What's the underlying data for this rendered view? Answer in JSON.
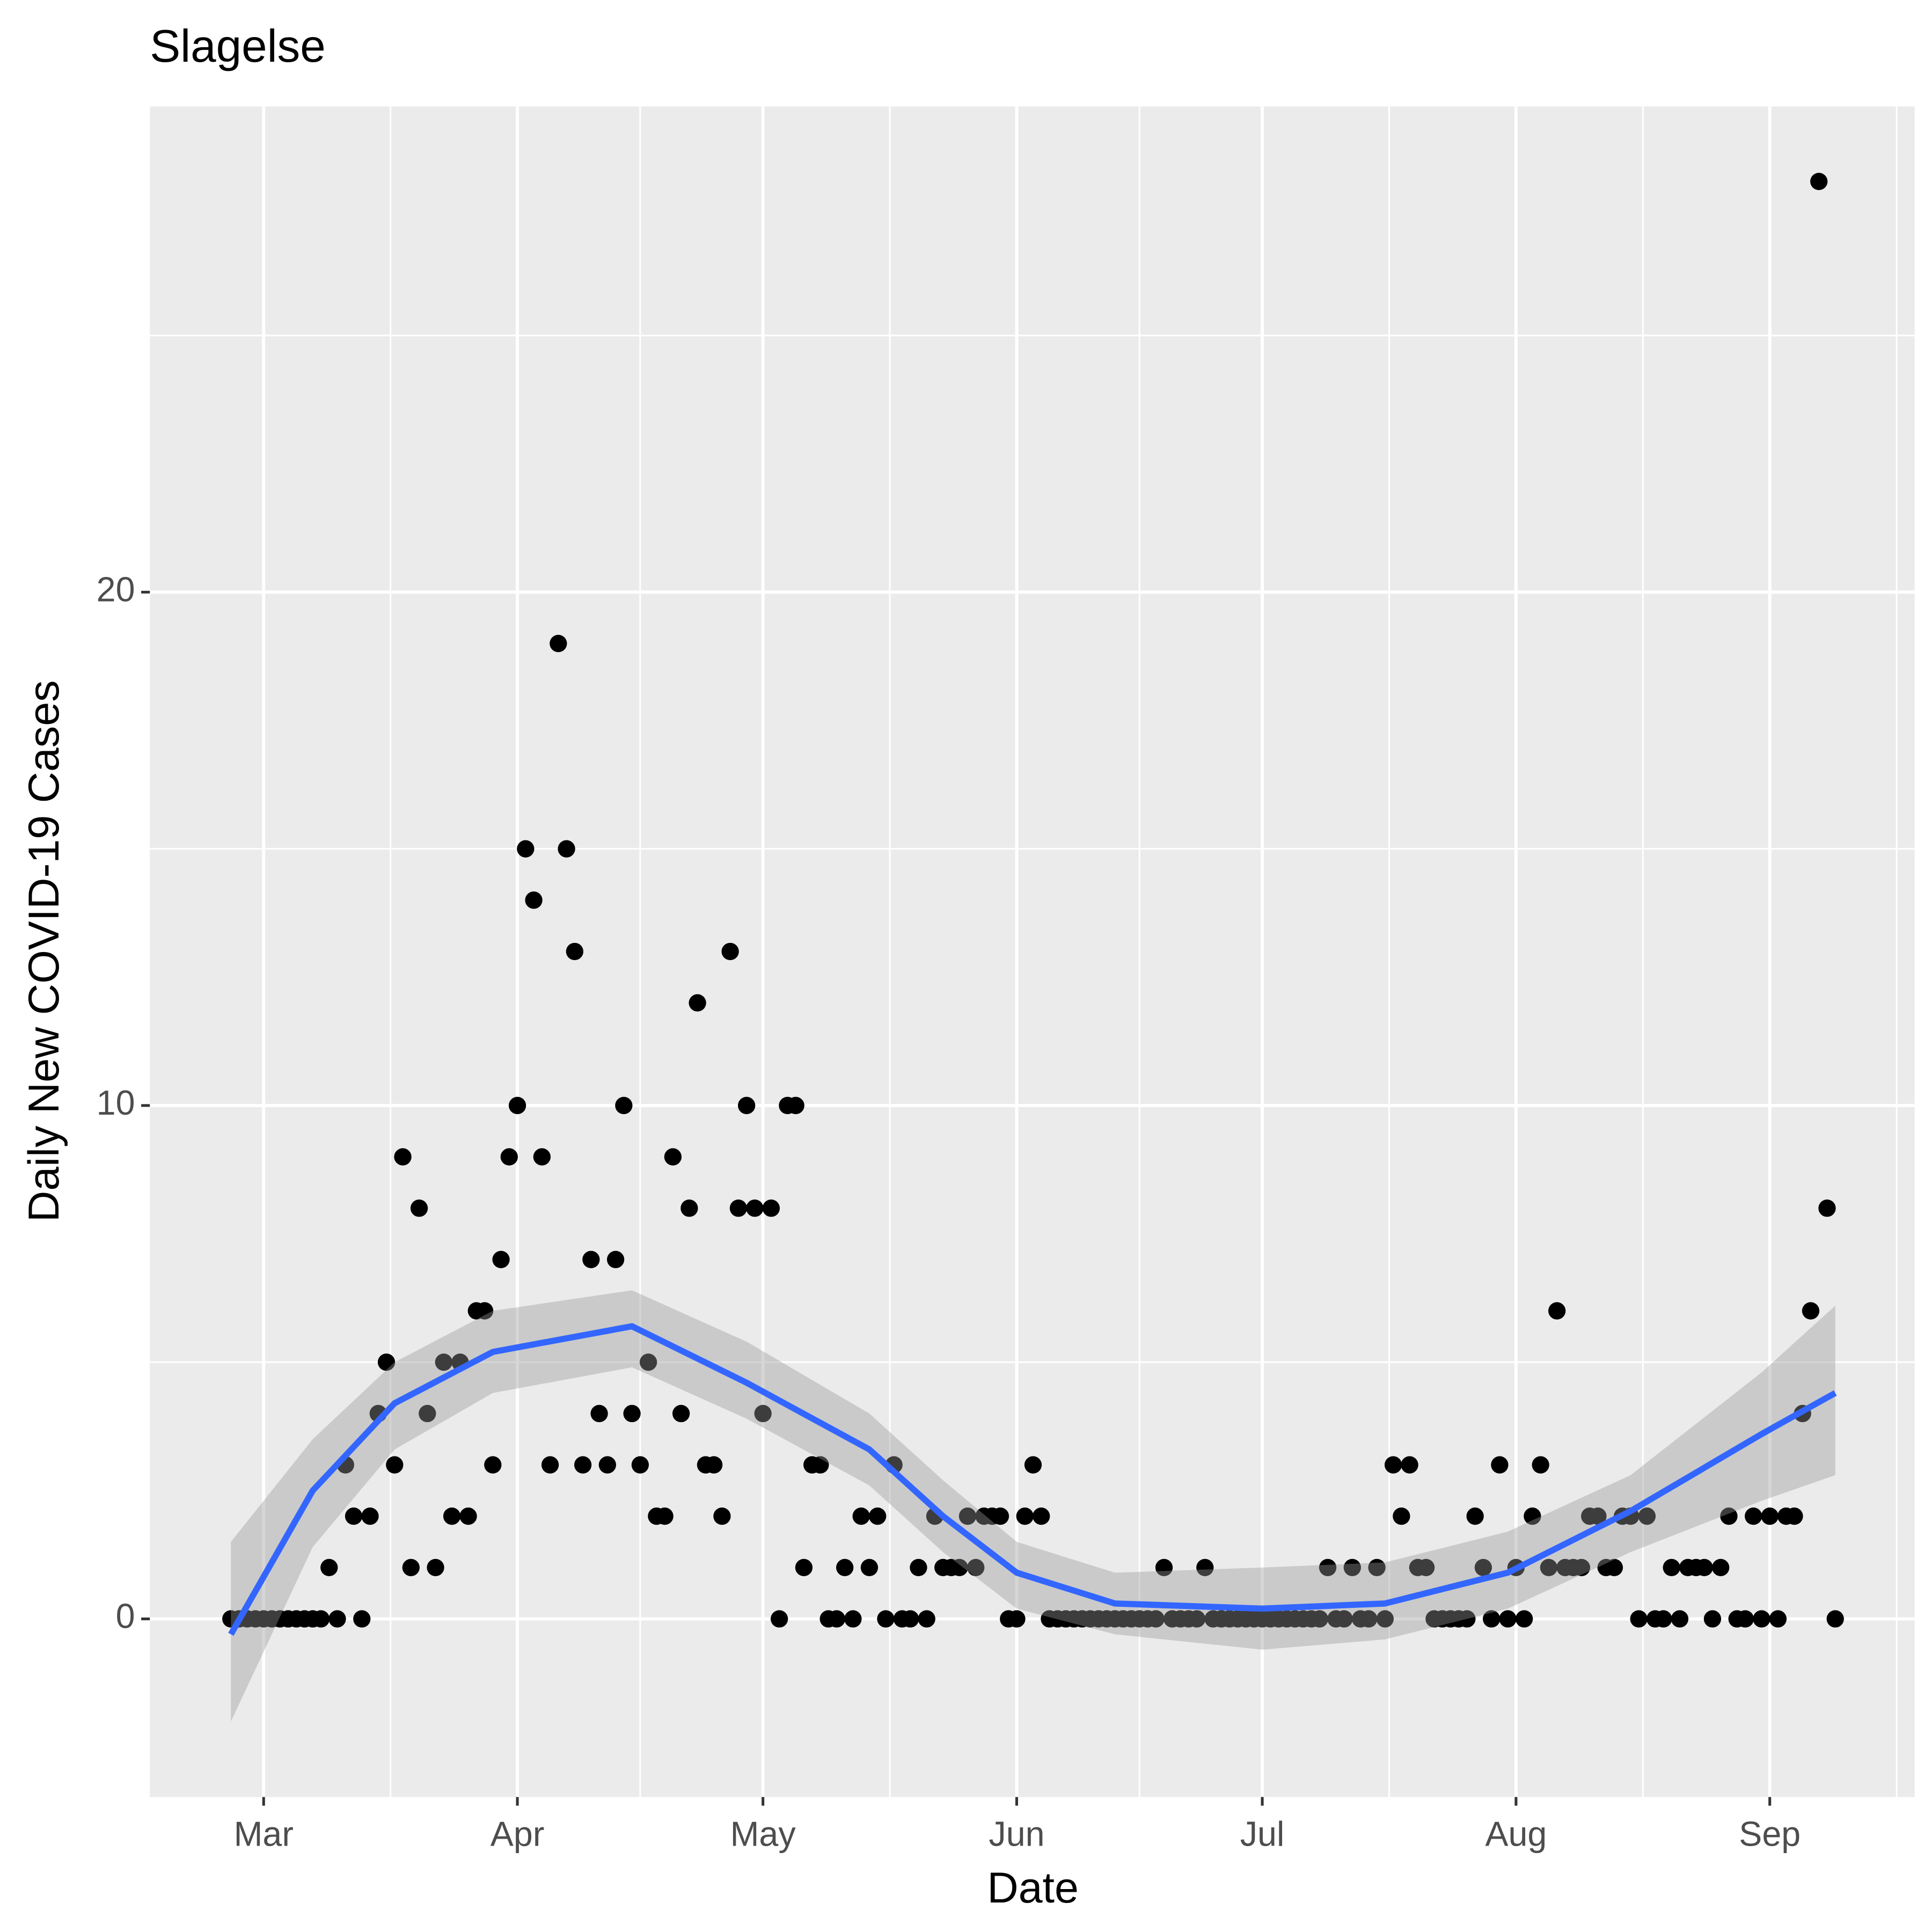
{
  "chart_data": {
    "type": "scatter",
    "title": "Slagelse",
    "xlabel": "Date",
    "ylabel": "Daily New COVID-19 Cases",
    "x": [
      57,
      58,
      59,
      60,
      61,
      62,
      63,
      64,
      65,
      66,
      67,
      68,
      69,
      70,
      71,
      72,
      73,
      74,
      75,
      76,
      77,
      78,
      79,
      80,
      81,
      82,
      83,
      84,
      85,
      86,
      87,
      88,
      89,
      90,
      91,
      92,
      93,
      94,
      95,
      96,
      97,
      98,
      99,
      100,
      101,
      102,
      103,
      104,
      105,
      106,
      107,
      108,
      109,
      110,
      111,
      112,
      113,
      114,
      115,
      116,
      117,
      118,
      119,
      120,
      121,
      122,
      123,
      124,
      125,
      126,
      127,
      128,
      129,
      130,
      131,
      132,
      133,
      134,
      135,
      136,
      137,
      138,
      139,
      140,
      141,
      142,
      143,
      144,
      145,
      146,
      147,
      148,
      149,
      150,
      151,
      152,
      153,
      154,
      155,
      156,
      157,
      158,
      159,
      160,
      161,
      162,
      163,
      164,
      165,
      166,
      167,
      168,
      169,
      170,
      171,
      172,
      173,
      174,
      175,
      176,
      177,
      178,
      179,
      180,
      181,
      182,
      183,
      184,
      185,
      186,
      187,
      188,
      189,
      190,
      191,
      192,
      193,
      194,
      195,
      196,
      197,
      198,
      199,
      200,
      201,
      202,
      203,
      204,
      205,
      206,
      207,
      208,
      209,
      210,
      211,
      212,
      213,
      214,
      215,
      216,
      217,
      218,
      219,
      220,
      221,
      222,
      223,
      224,
      225,
      226,
      227,
      228,
      229,
      230,
      231,
      232,
      233,
      234,
      235,
      236,
      237,
      238,
      239,
      240,
      241,
      242,
      243,
      244,
      245,
      246,
      247,
      248,
      249,
      250,
      251,
      252,
      253
    ],
    "values": [
      0,
      0,
      0,
      0,
      0,
      0,
      0,
      0,
      0,
      0,
      0,
      0,
      1,
      0,
      3,
      2,
      0,
      2,
      4,
      5,
      3,
      9,
      1,
      8,
      4,
      1,
      5,
      2,
      5,
      2,
      6,
      6,
      3,
      7,
      9,
      10,
      15,
      14,
      9,
      3,
      19,
      15,
      13,
      3,
      7,
      4,
      3,
      7,
      10,
      4,
      3,
      5,
      2,
      2,
      9,
      4,
      8,
      12,
      3,
      3,
      2,
      13,
      8,
      10,
      8,
      4,
      8,
      0,
      10,
      10,
      1,
      3,
      3,
      0,
      0,
      1,
      0,
      2,
      1,
      2,
      0,
      3,
      0,
      0,
      1,
      0,
      2,
      1,
      1,
      1,
      2,
      1,
      2,
      2,
      2,
      0,
      0,
      2,
      3,
      2,
      0,
      0,
      0,
      0,
      0,
      0,
      0,
      0,
      0,
      0,
      0,
      0,
      0,
      0,
      1,
      0,
      0,
      0,
      0,
      1,
      0,
      0,
      0,
      0,
      0,
      0,
      0,
      0,
      0,
      0,
      0,
      0,
      0,
      0,
      1,
      0,
      0,
      1,
      0,
      0,
      1,
      0,
      3,
      2,
      3,
      1,
      1,
      0,
      0,
      0,
      0,
      0,
      2,
      1,
      0,
      3,
      0,
      1,
      0,
      2,
      3,
      1,
      6,
      1,
      1,
      1,
      2,
      2,
      1,
      1,
      2,
      2,
      0,
      2,
      0,
      0,
      1,
      0,
      1,
      1,
      1,
      0,
      1,
      2,
      0,
      0,
      2,
      0,
      2,
      0,
      2,
      2,
      4,
      6,
      28,
      8,
      0
    ],
    "color": "#000000",
    "smooth": {
      "x": [
        57,
        67,
        77,
        89,
        106,
        120,
        135,
        144,
        153,
        165,
        183,
        198,
        213,
        228,
        244,
        253
      ],
      "values": [
        -0.3,
        2.5,
        4.2,
        5.2,
        5.7,
        4.6,
        3.3,
        2.0,
        0.9,
        0.3,
        0.2,
        0.3,
        0.9,
        2.1,
        3.6,
        4.4
      ],
      "lower": [
        -2.0,
        1.4,
        3.3,
        4.4,
        4.9,
        3.9,
        2.6,
        1.3,
        0.2,
        -0.3,
        -0.6,
        -0.4,
        0.2,
        1.3,
        2.3,
        2.8
      ],
      "upper": [
        1.5,
        3.5,
        5.0,
        6.0,
        6.4,
        5.4,
        4.0,
        2.7,
        1.5,
        0.9,
        1.0,
        1.1,
        1.7,
        2.8,
        4.8,
        6.1
      ],
      "color": "#3366ff",
      "band_color": "#999999"
    },
    "xlim": [
      47.1,
      262.7
    ],
    "ylim": [
      -3.47,
      29.46
    ],
    "xticks": [
      {
        "value": 61,
        "label": "Mar"
      },
      {
        "value": 92,
        "label": "Apr"
      },
      {
        "value": 122,
        "label": "May"
      },
      {
        "value": 153,
        "label": "Jun"
      },
      {
        "value": 183,
        "label": "Jul"
      },
      {
        "value": 214,
        "label": "Aug"
      },
      {
        "value": 245,
        "label": "Sep"
      }
    ],
    "yticks": [
      0,
      10,
      20
    ],
    "grid": true
  }
}
